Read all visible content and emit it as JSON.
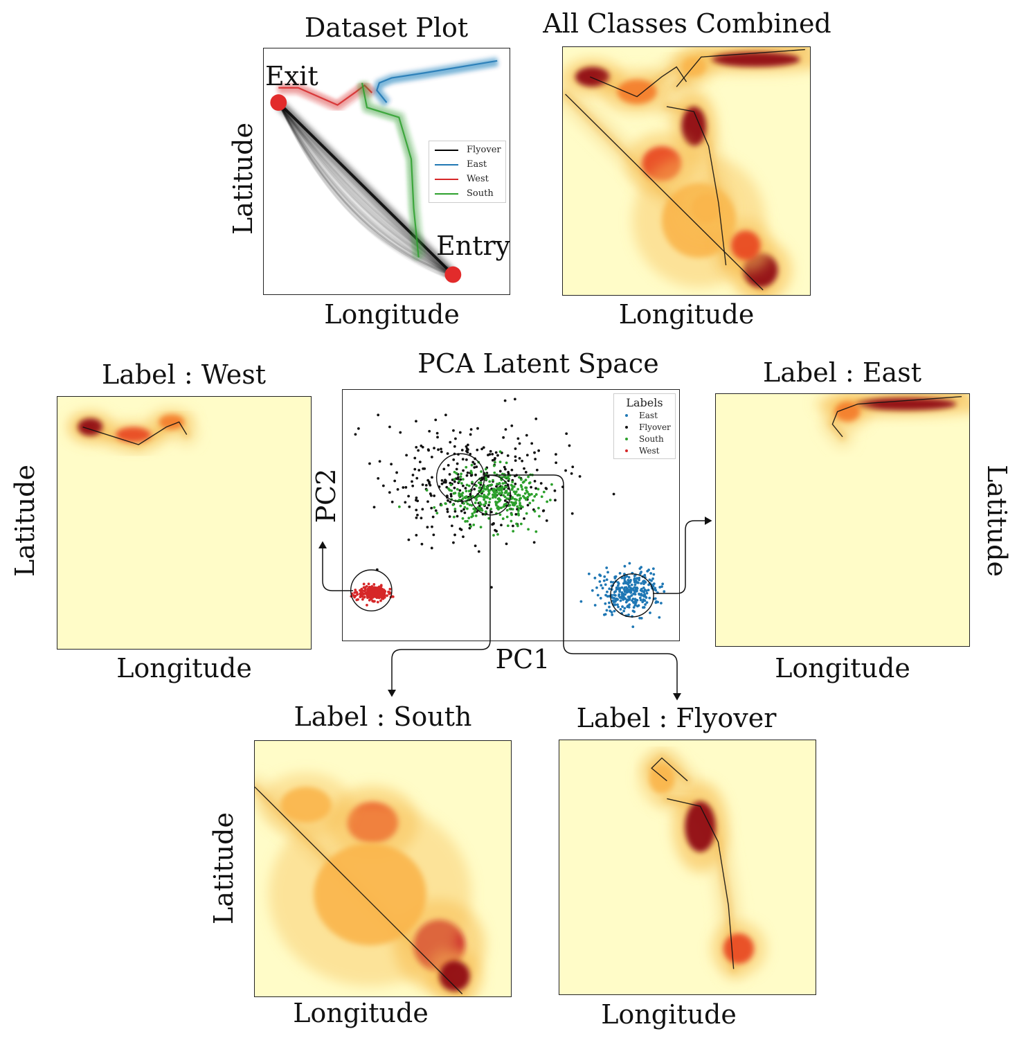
{
  "chart_data": [
    {
      "id": "dataset",
      "type": "line",
      "title": "Dataset Plot",
      "xlabel": "Longitude",
      "ylabel": "Latitude",
      "legend": {
        "placement": "center-right",
        "entries": [
          {
            "name": "Flyover",
            "color": "#000000"
          },
          {
            "name": "East",
            "color": "#1f77b4"
          },
          {
            "name": "West",
            "color": "#d62728"
          },
          {
            "name": "South",
            "color": "#2ca02c"
          }
        ]
      },
      "annotations": [
        {
          "text": "Exit",
          "x": 0.06,
          "y": 0.78
        },
        {
          "text": "Entry",
          "x": 0.77,
          "y": 0.08
        }
      ],
      "xlim": [
        0,
        1
      ],
      "ylim": [
        0,
        1
      ],
      "series": [
        {
          "name": "Flyover",
          "color": "#000000",
          "x": [
            0.06,
            0.77
          ],
          "y": [
            0.78,
            0.08
          ]
        },
        {
          "name": "East",
          "color": "#1f77b4",
          "x": [
            0.5,
            0.46,
            0.47,
            0.52,
            0.65,
            0.95
          ],
          "y": [
            0.78,
            0.83,
            0.86,
            0.88,
            0.9,
            0.95
          ]
        },
        {
          "name": "West",
          "color": "#d62728",
          "x": [
            0.06,
            0.14,
            0.3,
            0.37,
            0.41,
            0.44
          ],
          "y": [
            0.84,
            0.84,
            0.77,
            0.82,
            0.85,
            0.82
          ]
        },
        {
          "name": "South",
          "color": "#2ca02c",
          "x": [
            0.4,
            0.42,
            0.55,
            0.6,
            0.61,
            0.63
          ],
          "y": [
            0.86,
            0.76,
            0.72,
            0.55,
            0.35,
            0.15
          ]
        }
      ]
    },
    {
      "id": "combined",
      "type": "heatmap",
      "title": "All Classes Combined",
      "xlabel": "Longitude",
      "ylabel": "",
      "xlim": [
        0,
        1
      ],
      "ylim": [
        0,
        1
      ],
      "blobs": [
        {
          "x": 0.12,
          "y": 0.88,
          "w": 0.07,
          "h": 0.04,
          "v": 0.9
        },
        {
          "x": 0.3,
          "y": 0.82,
          "w": 0.08,
          "h": 0.05,
          "v": 0.5
        },
        {
          "x": 0.78,
          "y": 0.95,
          "w": 0.18,
          "h": 0.03,
          "v": 1.0
        },
        {
          "x": 0.53,
          "y": 0.92,
          "w": 0.05,
          "h": 0.04,
          "v": 0.4
        },
        {
          "x": 0.53,
          "y": 0.68,
          "w": 0.05,
          "h": 0.08,
          "v": 1.0
        },
        {
          "x": 0.4,
          "y": 0.53,
          "w": 0.08,
          "h": 0.07,
          "v": 0.65
        },
        {
          "x": 0.55,
          "y": 0.3,
          "w": 0.15,
          "h": 0.15,
          "v": 0.28
        },
        {
          "x": 0.8,
          "y": 0.1,
          "w": 0.07,
          "h": 0.07,
          "v": 0.95
        },
        {
          "x": 0.74,
          "y": 0.2,
          "w": 0.06,
          "h": 0.06,
          "v": 0.6
        },
        {
          "x": 0.58,
          "y": 0.35,
          "w": 0.06,
          "h": 0.06,
          "v": 0.4
        }
      ],
      "paths": [
        [
          [
            0.01,
            0.81
          ],
          [
            0.81,
            0.02
          ]
        ],
        [
          [
            0.11,
            0.88
          ],
          [
            0.3,
            0.8
          ],
          [
            0.4,
            0.88
          ],
          [
            0.46,
            0.92
          ],
          [
            0.5,
            0.86
          ]
        ],
        [
          [
            0.46,
            0.84
          ],
          [
            0.56,
            0.96
          ],
          [
            0.98,
            0.99
          ]
        ],
        [
          [
            0.42,
            0.76
          ],
          [
            0.53,
            0.74
          ],
          [
            0.59,
            0.6
          ],
          [
            0.63,
            0.37
          ],
          [
            0.66,
            0.12
          ]
        ]
      ]
    },
    {
      "id": "west",
      "type": "heatmap",
      "title": "Label : West",
      "xlabel": "Longitude",
      "ylabel": "Latitude",
      "xlim": [
        0,
        1
      ],
      "ylim": [
        0,
        1
      ],
      "blobs": [
        {
          "x": 0.13,
          "y": 0.88,
          "w": 0.05,
          "h": 0.035,
          "v": 1.0
        },
        {
          "x": 0.3,
          "y": 0.85,
          "w": 0.07,
          "h": 0.03,
          "v": 0.6
        },
        {
          "x": 0.45,
          "y": 0.9,
          "w": 0.05,
          "h": 0.03,
          "v": 0.5
        }
      ],
      "paths": [
        [
          [
            0.1,
            0.88
          ],
          [
            0.32,
            0.81
          ],
          [
            0.43,
            0.88
          ],
          [
            0.48,
            0.9
          ],
          [
            0.51,
            0.85
          ]
        ]
      ]
    },
    {
      "id": "east",
      "type": "heatmap",
      "title": "Label : East",
      "xlabel": "Longitude",
      "ylabel": "Latitude",
      "xlim": [
        0,
        1
      ],
      "ylim": [
        0,
        1
      ],
      "blobs": [
        {
          "x": 0.75,
          "y": 0.96,
          "w": 0.2,
          "h": 0.025,
          "v": 1.0
        },
        {
          "x": 0.52,
          "y": 0.93,
          "w": 0.05,
          "h": 0.04,
          "v": 0.45
        }
      ],
      "paths": [
        [
          [
            0.5,
            0.83
          ],
          [
            0.46,
            0.88
          ],
          [
            0.48,
            0.93
          ],
          [
            0.56,
            0.96
          ],
          [
            0.97,
            0.99
          ]
        ]
      ]
    },
    {
      "id": "south",
      "type": "heatmap",
      "title": "Label : South",
      "xlabel": "Longitude",
      "ylabel": "Latitude",
      "xlim": [
        0,
        1
      ],
      "ylim": [
        0,
        1
      ],
      "blobs": [
        {
          "x": 0.46,
          "y": 0.68,
          "w": 0.1,
          "h": 0.08,
          "v": 0.65
        },
        {
          "x": 0.72,
          "y": 0.2,
          "w": 0.1,
          "h": 0.1,
          "v": 0.85
        },
        {
          "x": 0.78,
          "y": 0.08,
          "w": 0.06,
          "h": 0.06,
          "v": 0.95
        },
        {
          "x": 0.45,
          "y": 0.4,
          "w": 0.22,
          "h": 0.2,
          "v": 0.25
        },
        {
          "x": 0.2,
          "y": 0.75,
          "w": 0.1,
          "h": 0.07,
          "v": 0.25
        }
      ],
      "paths": [
        [
          [
            0.0,
            0.82
          ],
          [
            0.81,
            0.01
          ]
        ]
      ]
    },
    {
      "id": "flyover",
      "type": "heatmap",
      "title": "Label : Flyover",
      "xlabel": "Longitude",
      "ylabel": "",
      "xlim": [
        0,
        1
      ],
      "ylim": [
        0,
        1
      ],
      "blobs": [
        {
          "x": 0.55,
          "y": 0.66,
          "w": 0.06,
          "h": 0.1,
          "v": 1.0
        },
        {
          "x": 0.7,
          "y": 0.18,
          "w": 0.06,
          "h": 0.06,
          "v": 0.6
        },
        {
          "x": 0.4,
          "y": 0.85,
          "w": 0.05,
          "h": 0.06,
          "v": 0.25
        }
      ],
      "paths": [
        [
          [
            0.42,
            0.77
          ],
          [
            0.55,
            0.74
          ],
          [
            0.62,
            0.6
          ],
          [
            0.66,
            0.35
          ],
          [
            0.68,
            0.1
          ]
        ],
        [
          [
            0.42,
            0.84
          ],
          [
            0.36,
            0.89
          ],
          [
            0.4,
            0.93
          ],
          [
            0.5,
            0.84
          ]
        ]
      ]
    },
    {
      "id": "pca",
      "type": "scatter",
      "title": "PCA Latent Space",
      "xlabel": "PC1",
      "ylabel": "PC2",
      "legend": {
        "title": "Labels",
        "placement": "top-right",
        "entries": [
          {
            "name": "East",
            "color": "#1f77b4"
          },
          {
            "name": "Flyover",
            "color": "#111111"
          },
          {
            "name": "South",
            "color": "#2ca02c"
          },
          {
            "name": "West",
            "color": "#d62728"
          }
        ]
      },
      "xlim": [
        0,
        1
      ],
      "ylim": [
        0,
        1
      ],
      "clusters": [
        {
          "name": "Flyover",
          "color": "#111111",
          "cx": 0.38,
          "cy": 0.63,
          "sx": 0.13,
          "sy": 0.12,
          "n": 330
        },
        {
          "name": "South",
          "color": "#2ca02c",
          "cx": 0.45,
          "cy": 0.58,
          "sx": 0.07,
          "sy": 0.055,
          "n": 330
        },
        {
          "name": "East",
          "color": "#1f77b4",
          "cx": 0.85,
          "cy": 0.19,
          "sx": 0.045,
          "sy": 0.045,
          "n": 300
        },
        {
          "name": "West",
          "color": "#d62728",
          "cx": 0.09,
          "cy": 0.19,
          "sx": 0.022,
          "sy": 0.013,
          "n": 260
        }
      ],
      "circles": [
        {
          "cx": 0.35,
          "cy": 0.65,
          "r": 0.071
        },
        {
          "cx": 0.44,
          "cy": 0.58,
          "r": 0.059
        },
        {
          "cx": 0.085,
          "cy": 0.2,
          "r": 0.061
        },
        {
          "cx": 0.86,
          "cy": 0.18,
          "r": 0.064
        }
      ]
    }
  ]
}
